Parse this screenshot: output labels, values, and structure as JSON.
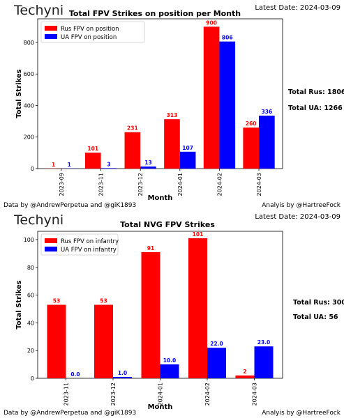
{
  "chart_data": [
    {
      "type": "bar",
      "brand": "Techyni",
      "latest_date": "Latest Date: 2024-03-09",
      "title": "Total FPV Strikes on position per Month",
      "xlabel": "Month",
      "ylabel": "Total Strikes",
      "categories": [
        "2023-09",
        "2023-11",
        "2023-12",
        "2024-01",
        "2024-02",
        "2024-03"
      ],
      "yticks": [
        0,
        200,
        400,
        600,
        800
      ],
      "ylim": [
        0,
        950
      ],
      "series": [
        {
          "name": "Rus FPV on position",
          "color": "#ff0000",
          "values": [
            1,
            101,
            231,
            313,
            900,
            260
          ],
          "labels": [
            "1",
            "101",
            "231",
            "313",
            "900",
            "260"
          ]
        },
        {
          "name": "UA FPV on position",
          "color": "#0000ff",
          "values": [
            1,
            3,
            13,
            107,
            806,
            336
          ],
          "labels": [
            "1",
            "3",
            "13",
            "107",
            "806",
            "336"
          ]
        }
      ],
      "legend": "top-left",
      "totals": [
        "Total Rus: 1806",
        "Total UA: 1266"
      ],
      "footer_left": "Data by @AndrewPerpetua and @giK1893",
      "footer_right": "Analyis by @HartreeFock"
    },
    {
      "type": "bar",
      "brand": "Techyni",
      "latest_date": "Latest Date: 2024-03-09",
      "title": "Total NVG FPV Strikes",
      "xlabel": "Month",
      "ylabel": "Total Strikes",
      "categories": [
        "2023-11",
        "2023-12",
        "2024-01",
        "2024-02",
        "2024-03"
      ],
      "yticks": [
        0,
        20,
        40,
        60,
        80,
        100
      ],
      "ylim": [
        0,
        106
      ],
      "series": [
        {
          "name": "Rus FPV on infantry",
          "color": "#ff0000",
          "values": [
            53,
            53,
            91,
            101,
            2
          ],
          "labels": [
            "53",
            "53",
            "91",
            "101",
            "2"
          ]
        },
        {
          "name": "UA FPV on infantry",
          "color": "#0000ff",
          "values": [
            0,
            1,
            10,
            22,
            23
          ],
          "labels": [
            "0.0",
            "1.0",
            "10.0",
            "22.0",
            "23.0"
          ]
        }
      ],
      "legend": "top-left",
      "totals": [
        "Total Rus: 300",
        "Total UA: 56"
      ],
      "footer_left": "Data by @AndrewPerpetua and @giK1893",
      "footer_right": "Analyis by @HartreeFock"
    }
  ]
}
